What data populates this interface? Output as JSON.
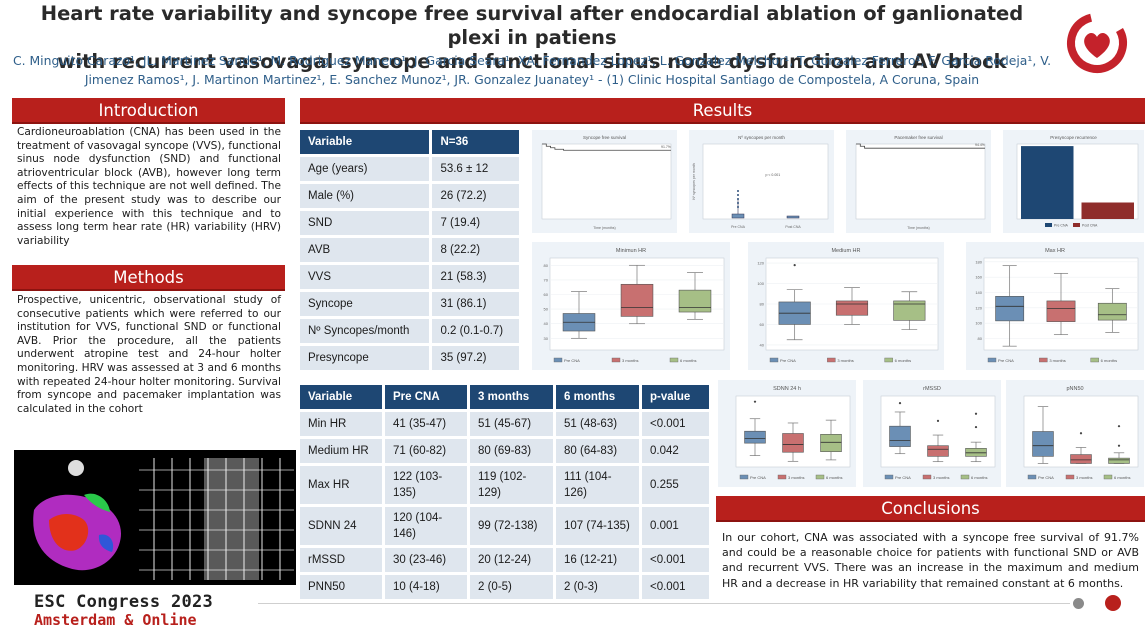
{
  "poster": {
    "title_line1": "Heart rate variability and syncope free survival after endocardial ablation of ganlionated plexi in patiens",
    "title_line2": "with recurrent vasovagal syncope and functional sinus node dysfunction and AV block",
    "authors_line1": "C. Minguito Carazo¹, JL. Martinez Sande¹, M. Rodriguez Manero¹, J. Garcia Seara¹, XA. Fernandez Lopez¹, L. Gonzalez Melchor¹, T. Gonzalez Ferrero¹, F. Garcia Rodeja¹, V.",
    "authors_line2": "Jimenez Ramos¹, J. Martinon Martinez¹, E. Sanchez Munoz¹, JR. Gonzalez Juanatey¹ - (1) Clinic Hospital Santiago de Compostela, A Coruna, Spain"
  },
  "introduction": {
    "heading": "Introduction",
    "text": "Cardioneuroablation (CNA) has been used in the treatment of vasovagal syncope (VVS), functional sinus node dysfunction (SND) and functional atrioventricular block (AVB), however long term effects of this technique are not well defined. The aim of the present study was to describe our initial experience with this technique and to assess long term hear rate (HR) variability (HRV) variability"
  },
  "methods": {
    "heading": "Methods",
    "text": "Prospective, unicentric, observational study of consecutive patients which were referred to our institution for VVS, functional SND or functional AVB. Prior the procedure, all the patients underwent atropine test and 24-hour holter monitoring. HRV was assessed at 3 and 6 months with repeated 24-hour holter monitoring. Survival from syncope and pacemaker implantation was calculated in the cohort"
  },
  "results": {
    "heading": "Results"
  },
  "conclusions": {
    "heading": "Conclusions",
    "text": "In our cohort, CNA was associated with a syncope free survival of 91.7% and could be a reasonable choice for patients with functional SND or AVB and recurrent VVS. There was an increase in the maximum and medium HR and a decrease in HR variability that remained constant at 6 months."
  },
  "table1": {
    "headers": [
      "Variable",
      "N=36"
    ],
    "rows": [
      [
        "Age (years)",
        "53.6 ± 12"
      ],
      [
        "Male (%)",
        "26 (72.2)"
      ],
      [
        "SND",
        "7 (19.4)"
      ],
      [
        "AVB",
        "8 (22.2)"
      ],
      [
        "VVS",
        "21 (58.3)"
      ],
      [
        "Syncope",
        "31 (86.1)"
      ],
      [
        "Nº Syncopes/month",
        "0.2 (0.1-0.7)"
      ],
      [
        "Presyncope",
        "35 (97.2)"
      ]
    ]
  },
  "table2": {
    "headers": [
      "Variable",
      "Pre CNA",
      "3 months",
      "6 months",
      "p-value"
    ],
    "rows": [
      [
        "Min HR",
        "41 (35-47)",
        "51 (45-67)",
        "51 (48-63)",
        "<0.001"
      ],
      [
        "Medium HR",
        "71 (60-82)",
        "80 (69-83)",
        "80 (64-83)",
        "0.042"
      ],
      [
        "Max HR",
        "122 (103-135)",
        "119 (102-129)",
        "111 (104-126)",
        "0.255"
      ],
      [
        "SDNN 24",
        "120 (104-146)",
        "99 (72-138)",
        "107 (74-135)",
        "0.001"
      ],
      [
        "rMSSD",
        "30 (23-46)",
        "20 (12-24)",
        "16 (12-21)",
        "<0.001"
      ],
      [
        "PNN50",
        "10 (4-18)",
        "2 (0-5)",
        "2 (0-3)",
        "<0.001"
      ]
    ]
  },
  "footer": {
    "congress": "ESC Congress 2023",
    "location": "Amsterdam & Online"
  },
  "colors": {
    "banner_red": "#b8201c",
    "table_header_navy": "#1e4773",
    "table_cell": "#dfe6ee",
    "box_blue": "#6b8fb5",
    "box_red": "#c87070",
    "box_green": "#a6bf86"
  },
  "chart_data": [
    {
      "type": "line",
      "title": "Syncope free survival",
      "xlabel": "Time (months)",
      "annotation": "91.7%",
      "x": [
        0,
        1,
        2,
        3,
        5,
        8,
        10,
        14,
        20,
        30
      ],
      "values": [
        1.0,
        0.97,
        0.95,
        0.93,
        0.917,
        0.917,
        0.917,
        0.917,
        0.917,
        0.917
      ],
      "ylim": [
        0,
        1
      ]
    },
    {
      "type": "scatter",
      "title": "Nº syncopes per month",
      "ylabel": "Nº syncopes per month",
      "annotation": "p < 0.001",
      "categories": [
        "Pre CNA",
        "Post CNA"
      ]
    },
    {
      "type": "line",
      "title": "Pacemaker free survival",
      "xlabel": "Time (months)",
      "annotation": "94.4%",
      "x": [
        0,
        1,
        2,
        5,
        10,
        20,
        30
      ],
      "values": [
        1.0,
        0.97,
        0.944,
        0.944,
        0.944,
        0.944,
        0.944
      ],
      "ylim": [
        0,
        1
      ]
    },
    {
      "type": "bar",
      "title": "Presyncope recurrence",
      "annotation": "p < 0.001",
      "categories": [
        "Pre CNA",
        "Post CNA"
      ],
      "values": [
        97.2,
        22
      ],
      "ylim": [
        0,
        100
      ],
      "legend": [
        "Pre CNA",
        "Post CNA"
      ]
    },
    {
      "type": "box",
      "title": "Minimun HR",
      "categories": [
        "Pre CNA",
        "3 months",
        "6 months"
      ],
      "series": [
        {
          "name": "Pre CNA",
          "min": 30,
          "q1": 35,
          "median": 41,
          "q3": 47,
          "max": 62
        },
        {
          "name": "3 months",
          "min": 40,
          "q1": 45,
          "median": 51,
          "q3": 67,
          "max": 80
        },
        {
          "name": "6 months",
          "min": 43,
          "q1": 48,
          "median": 51,
          "q3": 63,
          "max": 75
        }
      ],
      "ylim": [
        22,
        85
      ],
      "ticks": [
        20,
        30,
        40,
        50,
        60,
        70,
        80
      ]
    },
    {
      "type": "box",
      "title": "Medium HR",
      "categories": [
        "Pre CNA",
        "3 months",
        "6 months"
      ],
      "series": [
        {
          "name": "Pre CNA",
          "min": 45,
          "q1": 60,
          "median": 71,
          "q3": 82,
          "max": 94,
          "outliers": [
            118
          ]
        },
        {
          "name": "3 months",
          "min": 60,
          "q1": 69,
          "median": 80,
          "q3": 83,
          "max": 96
        },
        {
          "name": "6 months",
          "min": 55,
          "q1": 64,
          "median": 80,
          "q3": 83,
          "max": 92
        }
      ],
      "ylim": [
        35,
        125
      ],
      "ticks": [
        40,
        60,
        80,
        100,
        120
      ]
    },
    {
      "type": "box",
      "title": "Max HR",
      "categories": [
        "Pre CNA",
        "3 months",
        "6 months"
      ],
      "series": [
        {
          "name": "Pre CNA",
          "min": 70,
          "q1": 103,
          "median": 122,
          "q3": 135,
          "max": 175
        },
        {
          "name": "3 months",
          "min": 85,
          "q1": 102,
          "median": 119,
          "q3": 129,
          "max": 165
        },
        {
          "name": "6 months",
          "min": 88,
          "q1": 104,
          "median": 111,
          "q3": 126,
          "max": 145
        }
      ],
      "ylim": [
        65,
        185
      ],
      "ticks": [
        80,
        100,
        120,
        140,
        160,
        180
      ]
    },
    {
      "type": "box",
      "title": "SDNN 24 h",
      "categories": [
        "Pre CNA",
        "3 months",
        "6 months"
      ],
      "series": [
        {
          "name": "Pre CNA",
          "min": 60,
          "q1": 104,
          "median": 120,
          "q3": 146,
          "max": 190,
          "outliers": [
            250
          ]
        },
        {
          "name": "3 months",
          "min": 40,
          "q1": 72,
          "median": 99,
          "q3": 138,
          "max": 175
        },
        {
          "name": "6 months",
          "min": 45,
          "q1": 74,
          "median": 107,
          "q3": 135,
          "max": 185
        }
      ],
      "ylim": [
        20,
        270
      ]
    },
    {
      "type": "box",
      "title": "rMSSD",
      "categories": [
        "Pre CNA",
        "3 months",
        "6 months"
      ],
      "series": [
        {
          "name": "Pre CNA",
          "min": 15,
          "q1": 23,
          "median": 30,
          "q3": 46,
          "max": 62,
          "outliers": [
            72
          ]
        },
        {
          "name": "3 months",
          "min": 6,
          "q1": 12,
          "median": 20,
          "q3": 24,
          "max": 36,
          "outliers": [
            52
          ]
        },
        {
          "name": "6 months",
          "min": 6,
          "q1": 12,
          "median": 16,
          "q3": 21,
          "max": 28,
          "outliers": [
            45,
            60
          ]
        }
      ],
      "ylim": [
        0,
        80
      ]
    },
    {
      "type": "box",
      "title": "pNN50",
      "categories": [
        "Pre CNA",
        "3 months",
        "6 months"
      ],
      "series": [
        {
          "name": "Pre CNA",
          "min": 0,
          "q1": 4,
          "median": 10,
          "q3": 18,
          "max": 32
        },
        {
          "name": "3 months",
          "min": 0,
          "q1": 0,
          "median": 2,
          "q3": 5,
          "max": 9,
          "outliers": [
            17
          ]
        },
        {
          "name": "6 months",
          "min": 0,
          "q1": 0,
          "median": 2,
          "q3": 3,
          "max": 6,
          "outliers": [
            10,
            21
          ]
        }
      ],
      "ylim": [
        -2,
        38
      ]
    }
  ]
}
